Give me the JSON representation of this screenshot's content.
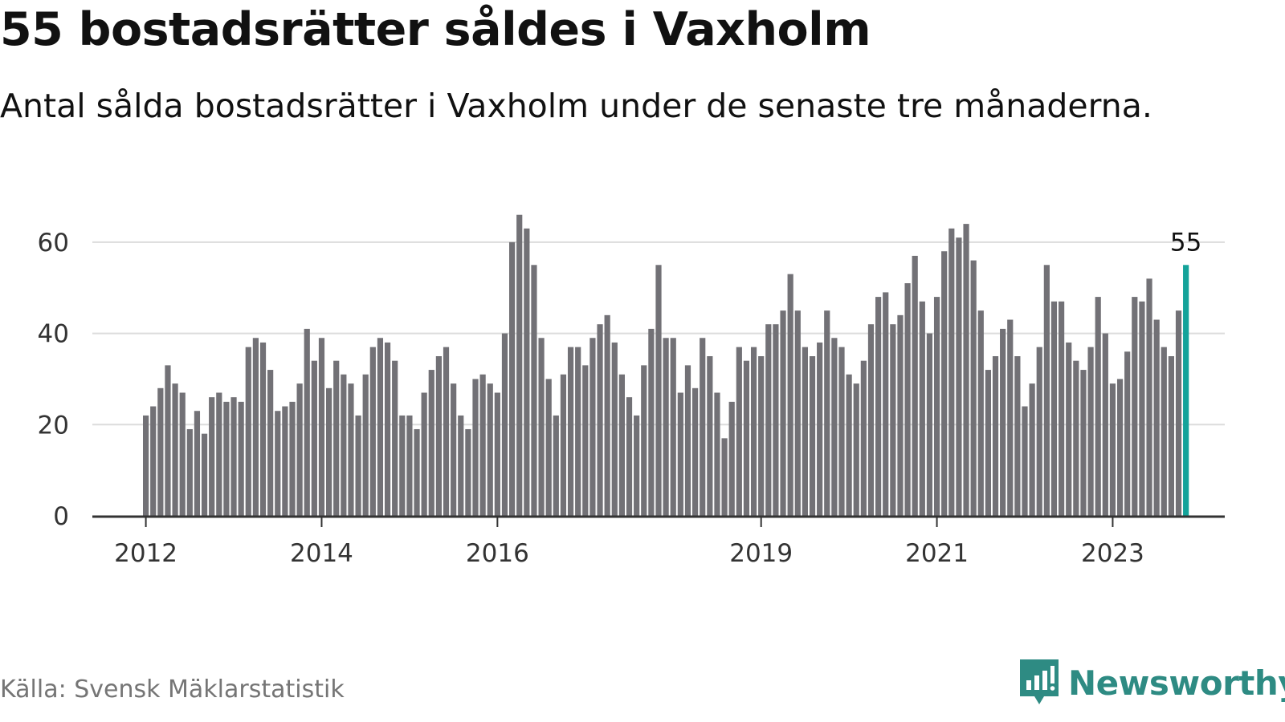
{
  "title": "55 bostadsrätter såldes i Vaxholm",
  "subtitle": "Antal sålda bostadsrätter i Vaxholm under de senaste tre månaderna.",
  "source": "Källa: Svensk Mäklarstatistik",
  "brand": "Newsworthy",
  "brand_icon": "bar-chart-speech-bubble-icon",
  "colors": {
    "bar": "#727176",
    "highlight": "#14a39a",
    "grid": "#dcdcdc",
    "axis": "#333333",
    "brand": "#2e8b83"
  },
  "chart_data": {
    "type": "bar",
    "title": "55 bostadsrätter såldes i Vaxholm",
    "xlabel": "",
    "ylabel": "",
    "ylim": [
      0,
      70
    ],
    "yticks": [
      0,
      20,
      40,
      60
    ],
    "grid": true,
    "start": "2012-01",
    "xtick_labels": [
      {
        "label": "2012",
        "index": 0
      },
      {
        "label": "2014",
        "index": 24
      },
      {
        "label": "2016",
        "index": 48
      },
      {
        "label": "2019",
        "index": 84
      },
      {
        "label": "2021",
        "index": 108
      },
      {
        "label": "2023",
        "index": 132
      }
    ],
    "values": [
      22,
      24,
      28,
      33,
      29,
      27,
      19,
      23,
      18,
      26,
      27,
      25,
      26,
      25,
      37,
      39,
      38,
      32,
      23,
      24,
      25,
      29,
      41,
      34,
      39,
      28,
      34,
      31,
      29,
      22,
      31,
      37,
      39,
      38,
      34,
      22,
      22,
      19,
      27,
      32,
      35,
      37,
      29,
      22,
      19,
      30,
      31,
      29,
      27,
      40,
      60,
      66,
      63,
      55,
      39,
      30,
      22,
      31,
      37,
      37,
      33,
      39,
      42,
      44,
      38,
      31,
      26,
      22,
      33,
      41,
      55,
      39,
      39,
      27,
      33,
      28,
      39,
      35,
      27,
      17,
      25,
      37,
      34,
      37,
      35,
      42,
      42,
      45,
      53,
      45,
      37,
      35,
      38,
      45,
      39,
      37,
      31,
      29,
      34,
      42,
      48,
      49,
      42,
      44,
      51,
      57,
      47,
      40,
      48,
      58,
      63,
      61,
      64,
      56,
      45,
      32,
      35,
      41,
      43,
      35,
      24,
      29,
      37,
      55,
      47,
      47,
      38,
      34,
      32,
      37,
      48,
      40,
      29,
      30,
      36,
      48,
      47,
      52,
      43,
      37,
      35,
      45,
      55
    ],
    "highlight_index": 142,
    "highlight_label": "55"
  }
}
